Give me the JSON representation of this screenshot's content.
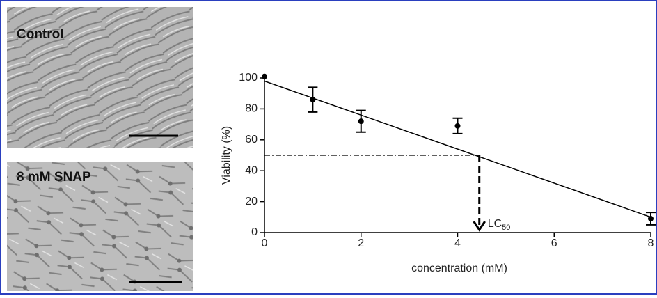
{
  "panels": [
    {
      "label": "Control"
    },
    {
      "label": "8 mM SNAP"
    }
  ],
  "chart_data": {
    "type": "scatter",
    "xlabel": "concentration (mM)",
    "ylabel": "Viability (%)",
    "x": [
      0,
      1,
      2,
      4,
      8
    ],
    "series": [
      {
        "color": "#000000",
        "values": [
          101,
          86,
          72,
          69,
          9
        ],
        "errors": [
          0,
          8,
          7,
          5,
          4
        ]
      }
    ],
    "xlim": [
      0,
      8
    ],
    "ylim": [
      0,
      100
    ],
    "xticks": [
      0,
      2,
      4,
      6,
      8
    ],
    "yticks": [
      0,
      20,
      40,
      60,
      80,
      100
    ],
    "fit_line": {
      "x": [
        0,
        8
      ],
      "y": [
        98,
        10
      ]
    },
    "lc50": {
      "x": 4.45,
      "y": 50,
      "label": "LC",
      "subscript": "50"
    }
  }
}
